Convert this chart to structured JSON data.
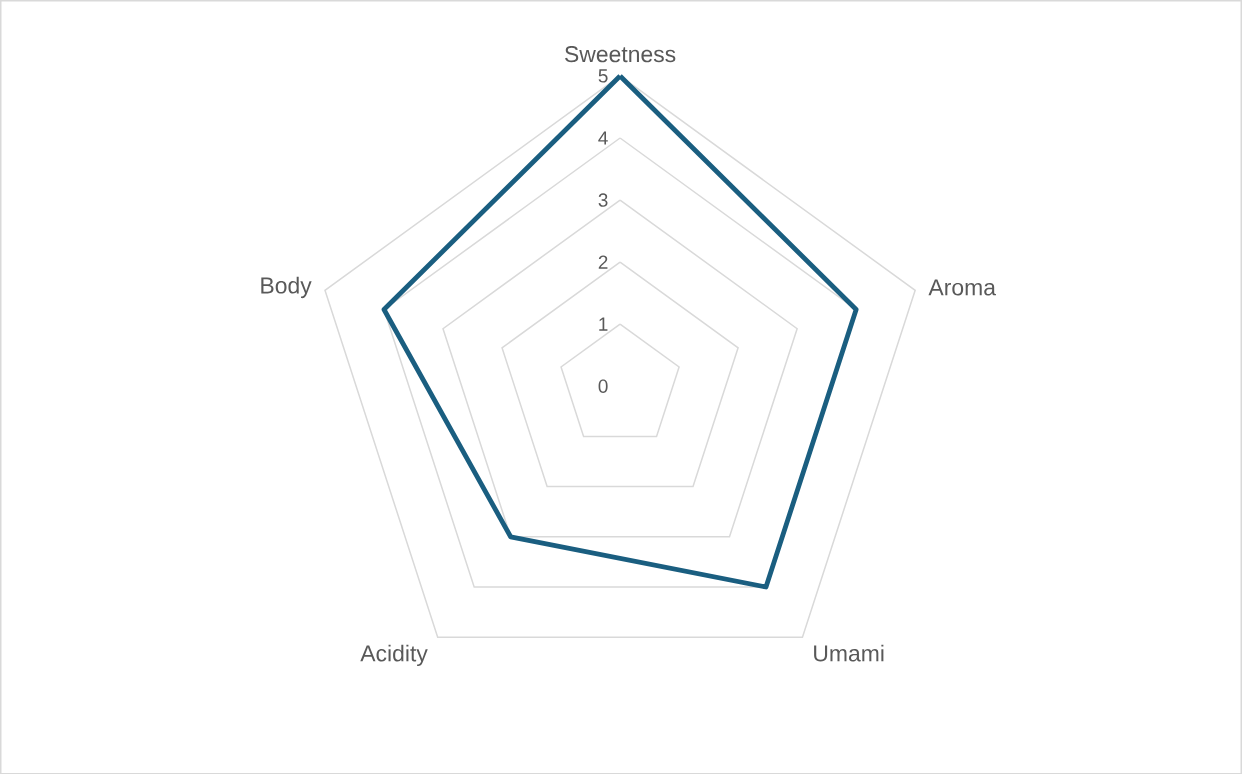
{
  "chart_data": {
    "type": "radar",
    "categories": [
      "Sweetness",
      "Aroma",
      "Umami",
      "Acidity",
      "Body"
    ],
    "series": [
      {
        "color": "#1a5e80",
        "values": [
          5,
          4,
          4,
          3,
          4
        ]
      }
    ],
    "ylim": [
      0,
      5
    ],
    "yticks": [
      0,
      1,
      2,
      3,
      4,
      5
    ],
    "grid": true,
    "marker": "none",
    "line_style": "solid"
  }
}
